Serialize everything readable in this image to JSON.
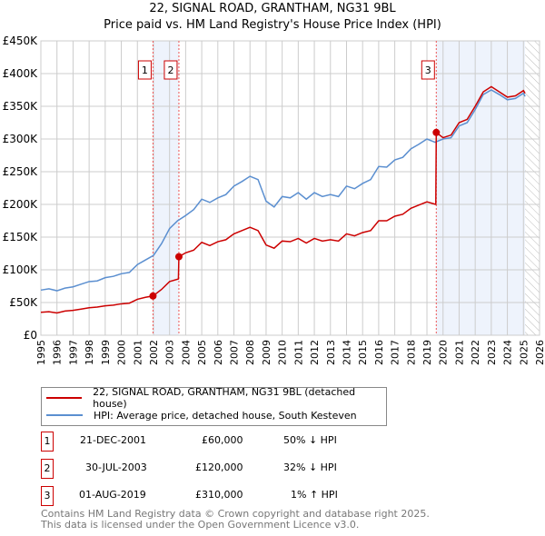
{
  "chart_data": {
    "type": "line",
    "title": "22, SIGNAL ROAD, GRANTHAM, NG31 9BL",
    "subtitle": "Price paid vs. HM Land Registry's House Price Index (HPI)",
    "xlim": [
      1995,
      2026
    ],
    "ylim": [
      0,
      450000
    ],
    "x_ticks": [
      "1995",
      "1996",
      "1997",
      "1998",
      "1999",
      "2000",
      "2001",
      "2002",
      "2003",
      "2004",
      "2005",
      "2006",
      "2007",
      "2008",
      "2009",
      "2010",
      "2011",
      "2012",
      "2013",
      "2014",
      "2015",
      "2016",
      "2017",
      "2018",
      "2019",
      "2020",
      "2021",
      "2022",
      "2023",
      "2024",
      "2025",
      "2026"
    ],
    "y_ticks": [
      {
        "v": 0,
        "label": "£0"
      },
      {
        "v": 50000,
        "label": "£50K"
      },
      {
        "v": 100000,
        "label": "£100K"
      },
      {
        "v": 150000,
        "label": "£150K"
      },
      {
        "v": 200000,
        "label": "£200K"
      },
      {
        "v": 250000,
        "label": "£250K"
      },
      {
        "v": 300000,
        "label": "£300K"
      },
      {
        "v": 350000,
        "label": "£350K"
      },
      {
        "v": 400000,
        "label": "£400K"
      },
      {
        "v": 450000,
        "label": "£450K"
      }
    ],
    "grid": true,
    "shaded_ranges": [
      [
        2001.97,
        2003.58
      ],
      [
        2019.58,
        2025.1
      ]
    ],
    "forecast_hatch_from": 2025.1,
    "series": [
      {
        "name": "22, SIGNAL ROAD, GRANTHAM, NG31 9BL (detached house)",
        "color": "#cc0000",
        "x": [
          1995,
          1995.5,
          1996,
          1996.5,
          1997,
          1997.5,
          1998,
          1998.5,
          1999,
          1999.5,
          2000,
          2000.5,
          2001,
          2001.5,
          2001.97,
          2002.5,
          2003,
          2003.55,
          2003.58,
          2004,
          2004.5,
          2005,
          2005.5,
          2006,
          2006.5,
          2007,
          2007.5,
          2008,
          2008.5,
          2009,
          2009.5,
          2010,
          2010.5,
          2011,
          2011.5,
          2012,
          2012.5,
          2013,
          2013.5,
          2014,
          2014.5,
          2015,
          2015.5,
          2016,
          2016.5,
          2017,
          2017.5,
          2018,
          2018.5,
          2019,
          2019.55,
          2019.58,
          2020,
          2020.5,
          2021,
          2021.5,
          2022,
          2022.5,
          2023,
          2023.5,
          2024,
          2024.5,
          2025,
          2025.1
        ],
        "y": [
          35000,
          36000,
          34000,
          37000,
          38000,
          40000,
          42000,
          43000,
          45000,
          46000,
          48000,
          49000,
          55000,
          58000,
          60000,
          70000,
          82000,
          86000,
          120000,
          126000,
          130000,
          142000,
          137000,
          143000,
          146000,
          155000,
          160000,
          165000,
          160000,
          138000,
          133000,
          144000,
          143000,
          148000,
          141000,
          148000,
          144000,
          146000,
          144000,
          155000,
          152000,
          157000,
          160000,
          175000,
          175000,
          182000,
          185000,
          194000,
          199000,
          204000,
          200000,
          310000,
          302000,
          306000,
          325000,
          330000,
          350000,
          372000,
          380000,
          372000,
          364000,
          366000,
          374000,
          370000
        ]
      },
      {
        "name": "HPI: Average price, detached house, South Kesteven",
        "color": "#5b8fd0",
        "x": [
          1995,
          1995.5,
          1996,
          1996.5,
          1997,
          1997.5,
          1998,
          1998.5,
          1999,
          1999.5,
          2000,
          2000.5,
          2001,
          2001.5,
          2002,
          2002.5,
          2003,
          2003.5,
          2004,
          2004.5,
          2005,
          2005.5,
          2006,
          2006.5,
          2007,
          2007.5,
          2008,
          2008.5,
          2009,
          2009.5,
          2010,
          2010.5,
          2011,
          2011.5,
          2012,
          2012.5,
          2013,
          2013.5,
          2014,
          2014.5,
          2015,
          2015.5,
          2016,
          2016.5,
          2017,
          2017.5,
          2018,
          2018.5,
          2019,
          2019.5,
          2020,
          2020.5,
          2021,
          2021.5,
          2022,
          2022.5,
          2023,
          2023.5,
          2024,
          2024.5,
          2025,
          2025.1
        ],
        "y": [
          69000,
          71000,
          68000,
          72000,
          74000,
          78000,
          82000,
          83000,
          88000,
          90000,
          94000,
          96000,
          108000,
          115000,
          122000,
          140000,
          163000,
          175000,
          183000,
          192000,
          208000,
          203000,
          210000,
          215000,
          228000,
          235000,
          243000,
          238000,
          205000,
          196000,
          212000,
          210000,
          218000,
          208000,
          218000,
          212000,
          215000,
          212000,
          228000,
          224000,
          232000,
          238000,
          258000,
          257000,
          268000,
          272000,
          285000,
          292000,
          300000,
          295000,
          300000,
          302000,
          320000,
          325000,
          345000,
          368000,
          375000,
          368000,
          360000,
          362000,
          370000,
          365000
        ]
      }
    ],
    "sales": [
      {
        "n": "1",
        "x": 2001.97,
        "y": 60000,
        "date": "21-DEC-2001",
        "price": "£60,000",
        "hpi": "50% ↓ HPI"
      },
      {
        "n": "2",
        "x": 2003.58,
        "y": 120000,
        "date": "30-JUL-2003",
        "price": "£120,000",
        "hpi": "32% ↓ HPI"
      },
      {
        "n": "3",
        "x": 2019.58,
        "y": 310000,
        "date": "01-AUG-2019",
        "price": "£310,000",
        "hpi": "1% ↑ HPI"
      }
    ]
  },
  "footer": {
    "line1": "Contains HM Land Registry data © Crown copyright and database right 2025.",
    "line2": "This data is licensed under the Open Government Licence v3.0."
  }
}
